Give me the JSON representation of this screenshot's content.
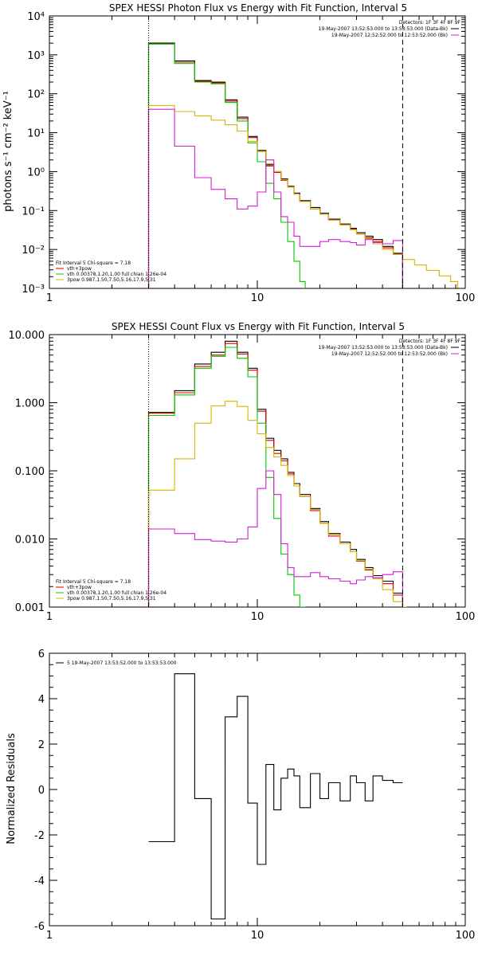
{
  "chart_data": [
    {
      "type": "line",
      "title": "SPEX HESSI Photon Flux vs Energy with Fit Function, Interval 5",
      "ylabel": "photons s⁻¹ cm⁻² keV⁻¹",
      "xlabel": "",
      "xscale": "log",
      "yscale": "log",
      "xlim": [
        1,
        100
      ],
      "ylim": [
        0.001,
        10000
      ],
      "xticks": [
        "1",
        "10",
        "100"
      ],
      "yticks": [
        "10⁻³",
        "10⁻²",
        "10⁻¹",
        "10⁰",
        "10¹",
        "10²",
        "10³",
        "10⁴"
      ],
      "ytick_values": [
        0.001,
        0.01,
        0.1,
        1,
        10,
        100,
        1000,
        10000
      ],
      "vlines": [
        {
          "x": 3,
          "style": "dotted"
        },
        {
          "x": 50,
          "style": "dashed"
        }
      ],
      "detectors_text": "Detectors: 1F 3F 4F 8F 9F",
      "legend_top": [
        {
          "label": "19-May-2007 13:52:53.000 to 13:53:53.000 (Data-Bk)",
          "color": "#000000"
        },
        {
          "label": "19-May-2007 12:52:52.000 to 12:53:52.000 (Bk)",
          "color": "#d21ed2"
        }
      ],
      "fit_header": "Fit Interval 5   Chi-square = 7.18",
      "legend_bottom": [
        {
          "label": "vth+3pow",
          "color": "#dc0000"
        },
        {
          "label": "vth 0.00378,1.20,1.00  full chian 1.26e-04",
          "color": "#00c800"
        },
        {
          "label": "3pow 0.987,1.50,7.50,5.16,17.9,5.31",
          "color": "#d7b400"
        }
      ],
      "series": [
        {
          "color": "#000000",
          "edges": [
            3,
            4,
            5,
            6,
            7,
            8,
            9,
            10,
            11,
            12,
            13,
            14,
            15,
            16,
            18,
            20,
            22,
            25,
            28,
            30,
            33,
            36,
            40,
            45,
            50
          ],
          "values": [
            2000,
            700,
            220,
            200,
            70,
            25,
            8,
            3.5,
            1.5,
            1.0,
            0.65,
            0.42,
            0.28,
            0.18,
            0.12,
            0.085,
            0.06,
            0.045,
            0.035,
            0.027,
            0.022,
            0.018,
            0.012,
            0.008
          ]
        },
        {
          "color": "#dc0000",
          "edges": [
            3,
            4,
            5,
            6,
            7,
            8,
            9,
            10,
            11,
            12,
            13,
            14,
            15,
            16,
            18,
            20,
            22,
            25,
            28,
            30,
            33,
            36,
            40,
            45,
            50
          ],
          "values": [
            1900,
            650,
            210,
            190,
            65,
            23,
            7.5,
            3.3,
            1.4,
            0.95,
            0.6,
            0.4,
            0.26,
            0.17,
            0.11,
            0.08,
            0.057,
            0.043,
            0.033,
            0.025,
            0.02,
            0.016,
            0.011,
            0.0075
          ]
        },
        {
          "color": "#00c800",
          "edges": [
            3,
            4,
            5,
            6,
            7,
            8,
            9,
            10,
            11,
            12,
            13,
            14,
            15,
            16,
            17
          ],
          "values": [
            1900,
            600,
            200,
            180,
            60,
            20,
            5.5,
            1.8,
            0.5,
            0.2,
            0.05,
            0.016,
            0.005,
            0.0015
          ]
        },
        {
          "color": "#d7b400",
          "edges": [
            3,
            4,
            5,
            6,
            7,
            8,
            9,
            10,
            11,
            12,
            13,
            14,
            15,
            16,
            18,
            20,
            22,
            25,
            28,
            30,
            33,
            36,
            40,
            45,
            50,
            57,
            65,
            75,
            85,
            92
          ],
          "values": [
            50,
            35,
            27,
            21,
            16,
            11,
            6,
            3.3,
            1.6,
            1.0,
            0.62,
            0.4,
            0.26,
            0.17,
            0.11,
            0.08,
            0.057,
            0.043,
            0.032,
            0.025,
            0.019,
            0.014,
            0.01,
            0.0075,
            0.0055,
            0.004,
            0.0029,
            0.0021,
            0.0015
          ]
        },
        {
          "color": "#d21ed2",
          "edges": [
            3,
            4,
            5,
            6,
            7,
            8,
            9,
            10,
            11,
            12,
            13,
            14,
            15,
            16,
            18,
            20,
            22,
            25,
            28,
            30,
            33,
            36,
            40,
            45,
            50
          ],
          "values": [
            40,
            4.5,
            0.7,
            0.35,
            0.2,
            0.11,
            0.13,
            0.3,
            2.0,
            0.3,
            0.07,
            0.05,
            0.022,
            0.012,
            0.012,
            0.016,
            0.018,
            0.016,
            0.015,
            0.013,
            0.018,
            0.015,
            0.014,
            0.017
          ]
        }
      ]
    },
    {
      "type": "line",
      "title": "SPEX HESSI Count Flux vs Energy with Fit Function, Interval 5",
      "ylabel": "",
      "xlabel": "",
      "xscale": "log",
      "yscale": "log",
      "xlim": [
        1,
        100
      ],
      "ylim": [
        0.001,
        10
      ],
      "xticks": [
        "1",
        "10",
        "100"
      ],
      "yticks": [
        "0.001",
        "0.010",
        "0.100",
        "1.000",
        "10.000"
      ],
      "ytick_values": [
        0.001,
        0.01,
        0.1,
        1,
        10
      ],
      "vlines": [
        {
          "x": 3,
          "style": "dotted"
        },
        {
          "x": 50,
          "style": "dashed"
        }
      ],
      "detectors_text": "Detectors: 1F 3F 4F 8F 9F",
      "legend_top": [
        {
          "label": "19-May-2007 13:52:53.000 to 13:53:53.000 (Data-Bk)",
          "color": "#000000"
        },
        {
          "label": "19-May-2007 12:52:52.000 to 12:53:52.000 (Bk)",
          "color": "#d21ed2"
        }
      ],
      "fit_header": "Fit Interval 5   Chi-square = 7.18",
      "legend_bottom": [
        {
          "label": "vth+3pow",
          "color": "#dc0000"
        },
        {
          "label": "vth 0.00378,1.20,1.00  full chian 1.26e-04",
          "color": "#00c800"
        },
        {
          "label": "3pow 0.987,1.50,7.50,5.16,17.9,5.31",
          "color": "#d7b400"
        }
      ],
      "series": [
        {
          "color": "#000000",
          "edges": [
            3,
            4,
            5,
            6,
            7,
            8,
            9,
            10,
            11,
            12,
            13,
            14,
            15,
            16,
            18,
            20,
            22,
            25,
            28,
            30,
            33,
            36,
            40,
            45,
            50
          ],
          "values": [
            0.72,
            1.5,
            3.7,
            5.5,
            8.0,
            5.5,
            3.2,
            0.8,
            0.3,
            0.2,
            0.15,
            0.095,
            0.065,
            0.045,
            0.028,
            0.018,
            0.012,
            0.009,
            0.007,
            0.005,
            0.0038,
            0.0029,
            0.0024,
            0.0016
          ]
        },
        {
          "color": "#dc0000",
          "edges": [
            3,
            4,
            5,
            6,
            7,
            8,
            9,
            10,
            11,
            12,
            13,
            14,
            15,
            16,
            18,
            20,
            22,
            25,
            28,
            30,
            33,
            36,
            40,
            45,
            50
          ],
          "values": [
            0.7,
            1.4,
            3.4,
            5.0,
            7.4,
            5.2,
            3.0,
            0.75,
            0.28,
            0.18,
            0.14,
            0.09,
            0.06,
            0.042,
            0.026,
            0.017,
            0.011,
            0.0085,
            0.0065,
            0.0047,
            0.0035,
            0.0027,
            0.0022,
            0.0015
          ]
        },
        {
          "color": "#00c800",
          "edges": [
            3,
            4,
            5,
            6,
            7,
            8,
            9,
            10,
            11,
            12,
            13,
            14,
            15,
            16,
            17
          ],
          "values": [
            0.65,
            1.3,
            3.2,
            4.8,
            6.5,
            4.5,
            2.4,
            0.5,
            0.08,
            0.02,
            0.006,
            0.003,
            0.0015,
            0.001
          ]
        },
        {
          "color": "#d7b400",
          "edges": [
            3,
            4,
            5,
            6,
            7,
            8,
            9,
            10,
            11,
            12,
            13,
            14,
            15,
            16,
            18,
            20,
            22,
            25,
            28,
            30,
            33,
            36,
            40,
            45,
            50,
            52
          ],
          "values": [
            0.052,
            0.15,
            0.5,
            0.9,
            1.05,
            0.88,
            0.55,
            0.35,
            0.22,
            0.16,
            0.12,
            0.085,
            0.06,
            0.042,
            0.027,
            0.017,
            0.0115,
            0.0085,
            0.0065,
            0.0048,
            0.0036,
            0.0026,
            0.0018,
            0.0012,
            0.001
          ]
        },
        {
          "color": "#d21ed2",
          "edges": [
            3,
            4,
            5,
            6,
            7,
            8,
            9,
            10,
            11,
            12,
            13,
            14,
            15,
            16,
            18,
            20,
            22,
            25,
            28,
            30,
            33,
            36,
            40,
            45,
            50
          ],
          "values": [
            0.014,
            0.012,
            0.0098,
            0.0093,
            0.009,
            0.01,
            0.015,
            0.055,
            0.1,
            0.045,
            0.0085,
            0.0038,
            0.0028,
            0.0028,
            0.0032,
            0.0028,
            0.0026,
            0.0024,
            0.0022,
            0.0025,
            0.0028,
            0.0027,
            0.003,
            0.0033
          ]
        }
      ]
    },
    {
      "type": "line",
      "title": "",
      "ylabel": "Normalized Residuals",
      "xlabel": "",
      "xscale": "log",
      "yscale": "linear",
      "xlim": [
        1,
        100
      ],
      "ylim": [
        -6,
        6
      ],
      "xticks": [
        "1",
        "10",
        "100"
      ],
      "yticks": [
        "-6",
        "-4",
        "-2",
        "0",
        "2",
        "4",
        "6"
      ],
      "ytick_values": [
        -6,
        -4,
        -2,
        0,
        2,
        4,
        6
      ],
      "legend_top": [
        {
          "label": "5  19-May-2007 13:53:52.000 to 13:53:53.000",
          "color": "#000000"
        }
      ],
      "series": [
        {
          "color": "#000000",
          "edges": [
            3,
            4,
            5,
            6,
            7,
            8,
            9,
            10,
            11,
            12,
            13,
            14,
            15,
            16,
            18,
            20,
            22,
            25,
            28,
            30,
            33,
            36,
            40,
            45,
            50
          ],
          "values": [
            -2.3,
            5.1,
            -0.4,
            -5.7,
            3.2,
            4.1,
            -0.6,
            -3.3,
            1.1,
            -0.9,
            0.5,
            0.9,
            0.6,
            -0.8,
            0.7,
            -0.4,
            0.3,
            -0.5,
            0.6,
            0.3,
            -0.5,
            0.6,
            0.4,
            0.3
          ]
        }
      ]
    }
  ]
}
